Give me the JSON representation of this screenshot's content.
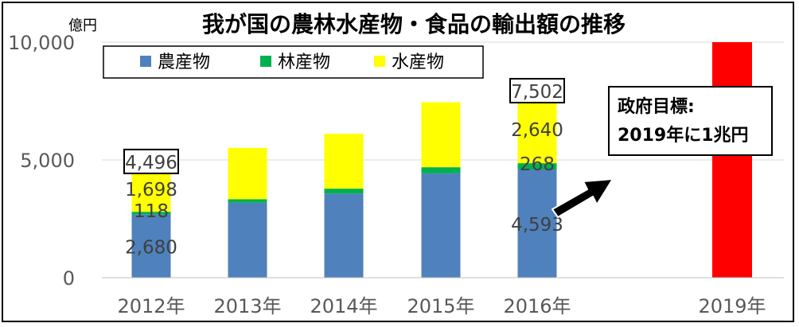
{
  "chart_data": {
    "type": "bar",
    "stacked": true,
    "title": "我が国の農林水産物・食品の輸出額の推移",
    "unit_label": "億円",
    "categories": [
      "2012年",
      "2013年",
      "2014年",
      "2015年",
      "2016年",
      "2019年"
    ],
    "ylim": [
      0,
      10000
    ],
    "yticks": [
      {
        "value": 0,
        "label": "0"
      },
      {
        "value": 5000,
        "label": "5,000"
      },
      {
        "value": 10000,
        "label": "10,000"
      }
    ],
    "grid": true,
    "legend_position": "top-left",
    "series": [
      {
        "name": "農産物",
        "color": "#4f81bd",
        "values": [
          2680,
          3180,
          3570,
          4430,
          4593,
          null
        ]
      },
      {
        "name": "林産物",
        "color": "#00b050",
        "values": [
          118,
          150,
          210,
          260,
          268,
          null
        ]
      },
      {
        "name": "水産物",
        "color": "#ffff00",
        "values": [
          1698,
          2180,
          2330,
          2760,
          2640,
          null
        ]
      }
    ],
    "data_labels": [
      {
        "category": "2012年",
        "series": "農産物",
        "text": "2,680"
      },
      {
        "category": "2012年",
        "series": "林産物",
        "text": "118"
      },
      {
        "category": "2012年",
        "series": "水産物",
        "text": "1,698"
      },
      {
        "category": "2016年",
        "series": "農産物",
        "text": "4,593"
      },
      {
        "category": "2016年",
        "series": "林産物",
        "text": "268"
      },
      {
        "category": "2016年",
        "series": "水産物",
        "text": "2,640"
      }
    ],
    "totals": [
      {
        "category": "2012年",
        "text": "4,496"
      },
      {
        "category": "2016年",
        "text": "7,502"
      }
    ],
    "target": {
      "category": "2019年",
      "value": 10000,
      "color": "#ff0000",
      "annotation_lines": [
        "政府目標:",
        "2019年に1兆円"
      ]
    }
  }
}
